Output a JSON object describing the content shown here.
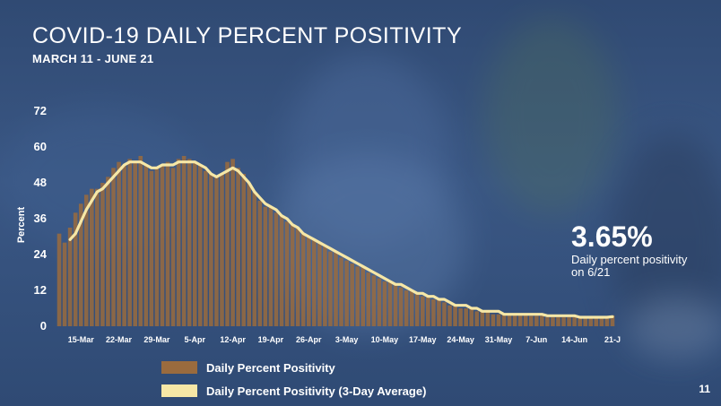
{
  "header": {
    "title": "COVID-19 DAILY PERCENT POSITIVITY",
    "subtitle": "MARCH 11 - JUNE 21"
  },
  "callout": {
    "value": "3.65%",
    "text": "Daily percent positivity on 6/21"
  },
  "page_number": "11",
  "colors": {
    "bar": "#9a6b3e",
    "line": "#f6e7a6",
    "axis_text": "#ffffff"
  },
  "chart_data": {
    "type": "bar",
    "title": "COVID-19 DAILY PERCENT POSITIVITY",
    "subtitle": "MARCH 11 - JUNE 21",
    "ylabel": "Percent",
    "ylim": [
      0,
      72
    ],
    "yticks": [
      0,
      12,
      24,
      36,
      48,
      60,
      72
    ],
    "x_tick_labels": [
      "15-Mar",
      "22-Mar",
      "29-Mar",
      "5-Apr",
      "12-Apr",
      "19-Apr",
      "26-Apr",
      "3-May",
      "10-May",
      "17-May",
      "24-May",
      "31-May",
      "7-Jun",
      "14-Jun",
      "21-J"
    ],
    "x_tick_index": [
      4,
      11,
      18,
      25,
      32,
      39,
      46,
      53,
      60,
      67,
      74,
      81,
      88,
      95,
      102
    ],
    "dates_start": "2020-03-11",
    "dates_end": "2020-06-21",
    "legend_position": "bottom",
    "grid": false,
    "series": [
      {
        "name": "Daily Percent Positivity",
        "type": "bar",
        "values": [
          31,
          28,
          33,
          38,
          41,
          44,
          46,
          46,
          48,
          50,
          53,
          55,
          54,
          56,
          55,
          57,
          54,
          52,
          53,
          54,
          55,
          53,
          56,
          57,
          56,
          55,
          54,
          52,
          51,
          50,
          51,
          55,
          56,
          53,
          51,
          48,
          45,
          42,
          40,
          40,
          38,
          37,
          35,
          34,
          33,
          31,
          30,
          29,
          28,
          27,
          25,
          25,
          23,
          22,
          21,
          20,
          20,
          18,
          17,
          16,
          15,
          15,
          14,
          13,
          12,
          12,
          11,
          10,
          10,
          9,
          9,
          8,
          7,
          7,
          6,
          6,
          6,
          5,
          5,
          5,
          4,
          4,
          4,
          4,
          4,
          4,
          4,
          3.5,
          3.5,
          3.5,
          3,
          3,
          3,
          3,
          3,
          3,
          3,
          2.8,
          2.8,
          2.8,
          2.8,
          3.2,
          3.65
        ],
        "color": "#9a6b3e"
      },
      {
        "name": "Daily Percent Positivity (3-Day Average)",
        "type": "line",
        "values": [
          null,
          null,
          29,
          31,
          35,
          39,
          42,
          45,
          46,
          48,
          50,
          52,
          54,
          55,
          55,
          55,
          54,
          53,
          53,
          54,
          54,
          54,
          55,
          55,
          55,
          55,
          54,
          53,
          51,
          50,
          51,
          52,
          53,
          52,
          50,
          48,
          45,
          43,
          41,
          40,
          39,
          37,
          36,
          34,
          33,
          31,
          30,
          29,
          28,
          27,
          26,
          25,
          24,
          23,
          22,
          21,
          20,
          19,
          18,
          17,
          16,
          15,
          14,
          14,
          13,
          12,
          11,
          11,
          10,
          10,
          9,
          9,
          8,
          7,
          7,
          7,
          6,
          6,
          5,
          5,
          5,
          5,
          4,
          4,
          4,
          4,
          4,
          4,
          4,
          4,
          3.5,
          3.5,
          3.5,
          3.5,
          3.5,
          3.5,
          3,
          3,
          3,
          3,
          3,
          3,
          3.2
        ],
        "color": "#f6e7a6"
      }
    ]
  }
}
